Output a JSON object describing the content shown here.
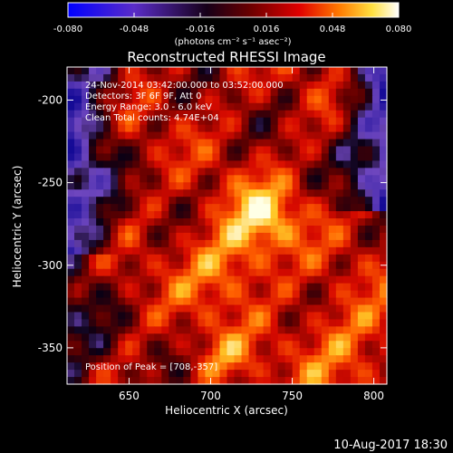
{
  "chart_data": {
    "type": "heatmap",
    "title": "Reconstructed RHESSI Image",
    "xlabel": "Heliocentric X (arcsec)",
    "ylabel": "Heliocentric Y (arcsec)",
    "xlim": [
      612,
      808
    ],
    "ylim": [
      -372,
      -180
    ],
    "xticks": [
      650,
      700,
      750,
      800
    ],
    "xtick_labels": [
      "650",
      "700",
      "750",
      "800"
    ],
    "yticks": [
      -200,
      -250,
      -300,
      -350
    ],
    "ytick_labels": [
      "-200",
      "-250",
      "-300",
      "-350"
    ],
    "colorbar": {
      "range": [
        -0.08,
        0.08
      ],
      "ticks": [
        -0.08,
        -0.048,
        -0.016,
        0.016,
        0.048,
        0.08
      ],
      "tick_labels": [
        "-0.080",
        "-0.048",
        "-0.016",
        "0.016",
        "0.048",
        "0.080"
      ],
      "units_label": "(photons cm⁻² s⁻¹ asec⁻²)",
      "colormap": "blue-purple-black-red-orange-yellow-white"
    },
    "annotations": [
      "24-Nov-2014 03:42:00.000 to 03:52:00.000",
      "Detectors: 3F 6F 9F, Att 0",
      "Energy Range: 3.0 - 6.0 keV",
      "Clean    Total counts: 4.74E+04"
    ],
    "peak_label": "Position of Peak = [708,-357]",
    "peak": [
      708,
      -357
    ]
  },
  "footer": {
    "date": "10-Aug-2017 18:30"
  }
}
